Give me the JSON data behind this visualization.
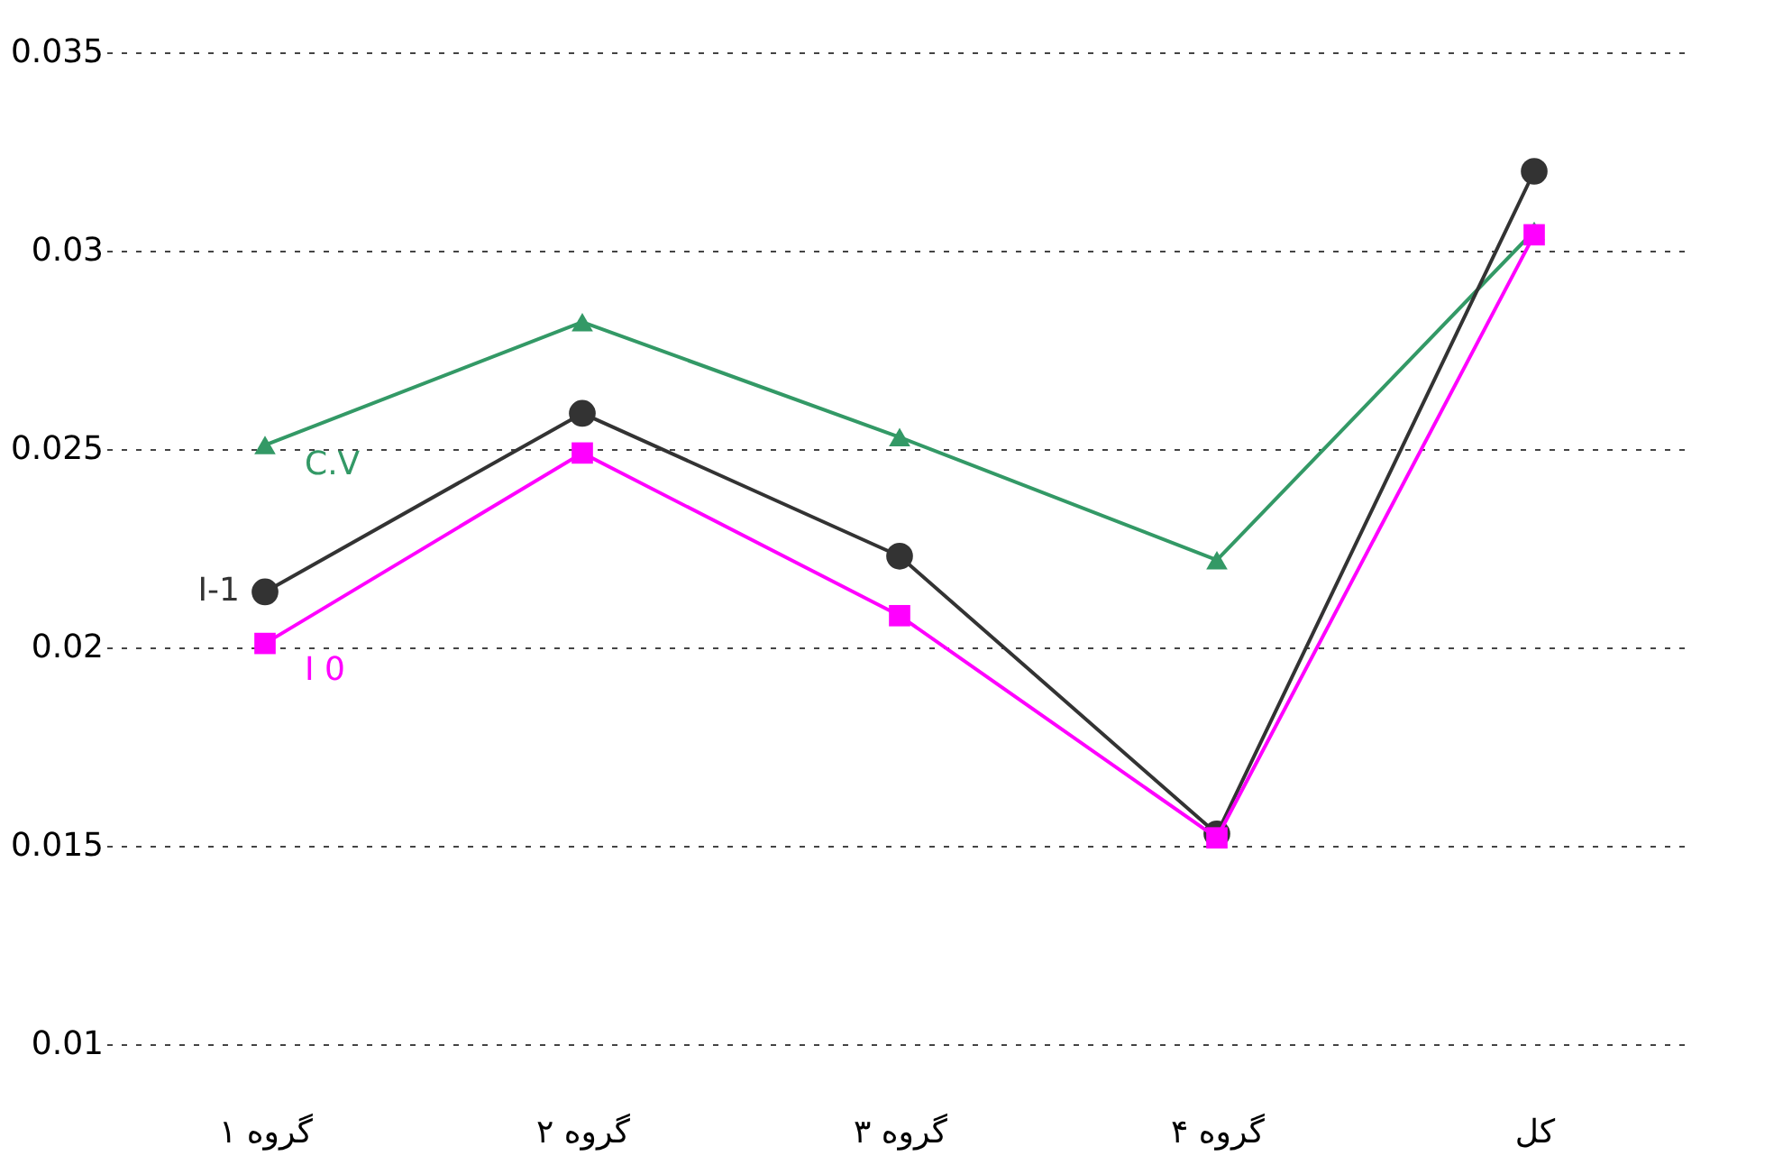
{
  "chart_data": {
    "type": "line",
    "categories": [
      "گروه ۱",
      "گروه ۲",
      "گروه ۳",
      "گروه ۴",
      "کل"
    ],
    "series": [
      {
        "name": "C.V",
        "color": "#339966",
        "marker": "triangle",
        "values": [
          0.0251,
          0.0282,
          0.0253,
          0.0222,
          0.0305
        ]
      },
      {
        "name": "I-1",
        "color": "#333333",
        "marker": "circle",
        "values": [
          0.0214,
          0.0259,
          0.0223,
          0.0153,
          0.032
        ]
      },
      {
        "name": "I 0",
        "color": "#ff00ff",
        "marker": "square",
        "values": [
          0.0201,
          0.0249,
          0.0208,
          0.0152,
          0.0304
        ]
      }
    ],
    "ylim": [
      0.01,
      0.035
    ],
    "yticks": [
      0.01,
      0.015,
      0.02,
      0.025,
      0.03,
      0.035
    ],
    "grid": "y",
    "line_style": "solid"
  }
}
